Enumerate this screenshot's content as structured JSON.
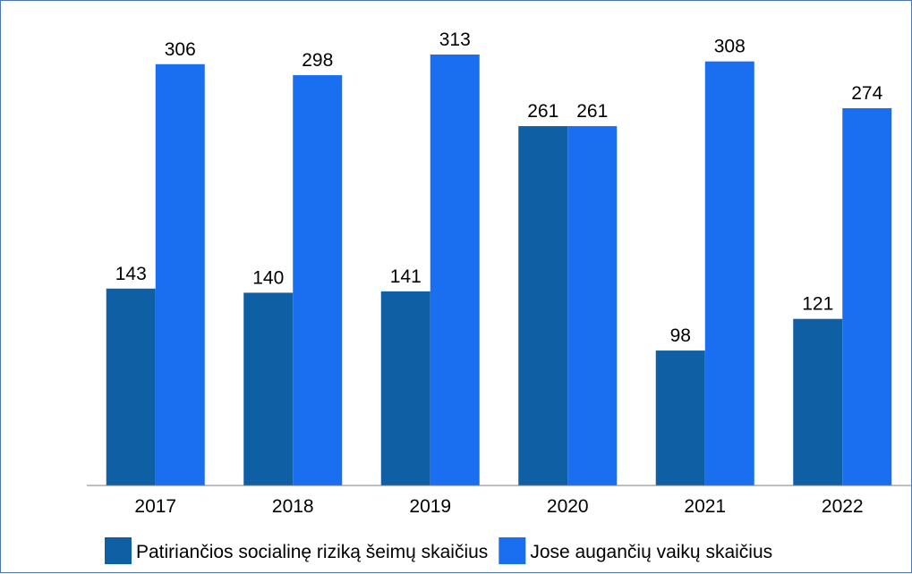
{
  "chart_data": {
    "type": "bar",
    "categories": [
      "2017",
      "2018",
      "2019",
      "2020",
      "2021",
      "2022"
    ],
    "series": [
      {
        "name": "Patiriančios socialinę riziką šeimų skaičius",
        "values": [
          143,
          140,
          141,
          261,
          98,
          121
        ],
        "color": "#0e5fa3"
      },
      {
        "name": "Jose augančių vaikų skaičius",
        "values": [
          306,
          298,
          313,
          261,
          308,
          274
        ],
        "color": "#1a6ff0"
      }
    ],
    "title": "",
    "xlabel": "",
    "ylabel": "",
    "ylim": [
      0,
      313
    ],
    "grid": false,
    "legend": "bottom",
    "data_labels": true
  }
}
